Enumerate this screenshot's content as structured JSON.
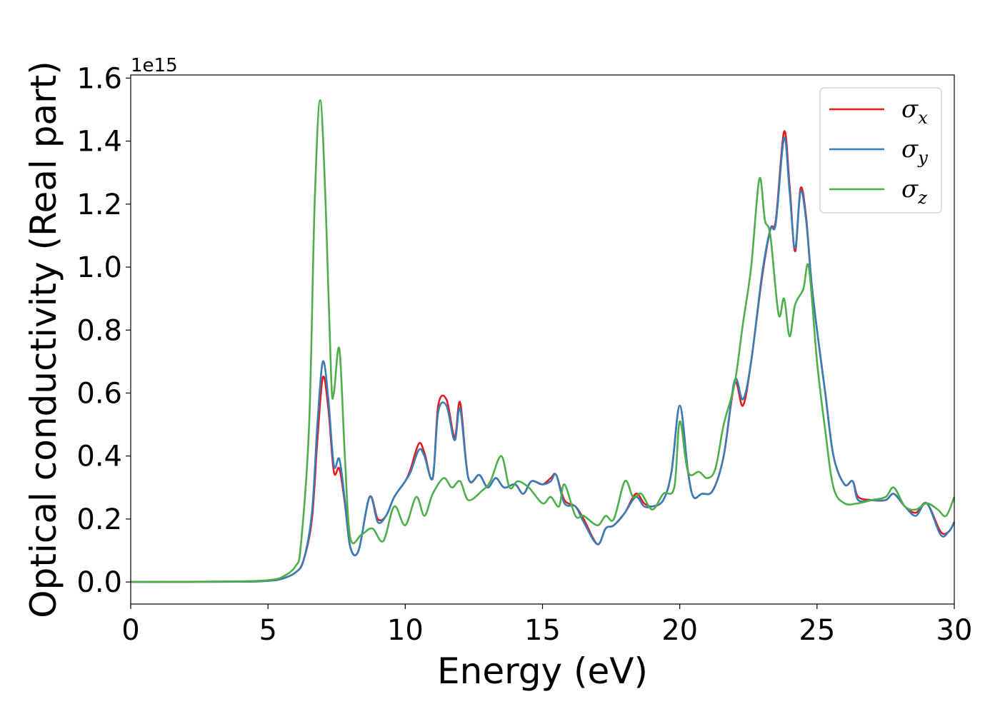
{
  "chart_data": {
    "type": "line",
    "title": "",
    "xlabel": "Energy (eV)",
    "ylabel": "Optical conductivity (Real part)",
    "y_offset_label": "1e15",
    "xlim": [
      0,
      30
    ],
    "ylim": [
      -0.07,
      1.61
    ],
    "xticks": [
      0,
      5,
      10,
      15,
      20,
      25,
      30
    ],
    "yticks": [
      0.0,
      0.2,
      0.4,
      0.6,
      0.8,
      1.0,
      1.2,
      1.4,
      1.6
    ],
    "xtick_labels": [
      "0",
      "5",
      "10",
      "15",
      "20",
      "25",
      "30"
    ],
    "ytick_labels": [
      "0.0",
      "0.2",
      "0.4",
      "0.6",
      "0.8",
      "1.0",
      "1.2",
      "1.4",
      "1.6"
    ],
    "grid": false,
    "legend_position": "top-right",
    "series": [
      {
        "name": "σx",
        "legend_symbol": "σ",
        "legend_sub": "x",
        "color": "#e41a1c",
        "x": [
          0,
          4,
          5,
          5.5,
          6,
          6.3,
          6.6,
          6.8,
          7.0,
          7.2,
          7.4,
          7.6,
          7.8,
          8.0,
          8.3,
          8.7,
          9.0,
          9.3,
          9.6,
          10.0,
          10.2,
          10.5,
          10.7,
          11.0,
          11.2,
          11.5,
          11.8,
          12.0,
          12.3,
          12.7,
          13.0,
          13.3,
          13.6,
          14.0,
          14.3,
          14.6,
          15.0,
          15.3,
          15.5,
          15.8,
          16.2,
          16.5,
          17.0,
          17.3,
          17.6,
          18.0,
          18.4,
          18.7,
          19.0,
          19.4,
          19.7,
          20.0,
          20.3,
          20.5,
          20.8,
          21.2,
          21.6,
          22.0,
          22.3,
          22.6,
          23.0,
          23.3,
          23.5,
          23.8,
          24.0,
          24.2,
          24.4,
          24.6,
          24.8,
          25.0,
          25.3,
          25.6,
          26.0,
          26.3,
          26.5,
          27.0,
          27.5,
          27.8,
          28.2,
          28.6,
          29.0,
          29.5,
          29.8,
          30.0
        ],
        "y": [
          0,
          0.001,
          0.004,
          0.01,
          0.03,
          0.07,
          0.2,
          0.45,
          0.65,
          0.55,
          0.35,
          0.36,
          0.25,
          0.11,
          0.1,
          0.27,
          0.2,
          0.21,
          0.27,
          0.32,
          0.36,
          0.44,
          0.41,
          0.33,
          0.56,
          0.58,
          0.46,
          0.57,
          0.33,
          0.34,
          0.3,
          0.33,
          0.3,
          0.31,
          0.28,
          0.32,
          0.31,
          0.33,
          0.34,
          0.26,
          0.24,
          0.2,
          0.12,
          0.17,
          0.18,
          0.22,
          0.28,
          0.25,
          0.24,
          0.26,
          0.35,
          0.56,
          0.35,
          0.27,
          0.28,
          0.29,
          0.4,
          0.63,
          0.56,
          0.7,
          0.97,
          1.12,
          1.15,
          1.43,
          1.26,
          1.05,
          1.25,
          1.16,
          0.95,
          0.8,
          0.6,
          0.4,
          0.31,
          0.32,
          0.27,
          0.26,
          0.26,
          0.28,
          0.24,
          0.22,
          0.25,
          0.16,
          0.16,
          0.19
        ]
      },
      {
        "name": "σy",
        "legend_symbol": "σ",
        "legend_sub": "y",
        "color": "#377eb8",
        "x": [
          0,
          4,
          5,
          5.5,
          6,
          6.3,
          6.6,
          6.8,
          7.0,
          7.2,
          7.4,
          7.6,
          7.8,
          8.0,
          8.3,
          8.7,
          9.0,
          9.3,
          9.6,
          10.0,
          10.2,
          10.5,
          10.7,
          11.0,
          11.2,
          11.5,
          11.8,
          12.0,
          12.3,
          12.7,
          13.0,
          13.3,
          13.6,
          14.0,
          14.3,
          14.6,
          15.0,
          15.3,
          15.5,
          15.8,
          16.2,
          16.5,
          17.0,
          17.3,
          17.6,
          18.0,
          18.4,
          18.7,
          19.0,
          19.4,
          19.7,
          20.0,
          20.3,
          20.5,
          20.8,
          21.2,
          21.6,
          22.0,
          22.3,
          22.6,
          23.0,
          23.3,
          23.5,
          23.8,
          24.0,
          24.2,
          24.4,
          24.6,
          24.8,
          25.0,
          25.3,
          25.6,
          26.0,
          26.3,
          26.5,
          27.0,
          27.5,
          27.8,
          28.2,
          28.6,
          29.0,
          29.5,
          29.8,
          30.0
        ],
        "y": [
          0,
          0.001,
          0.004,
          0.01,
          0.03,
          0.07,
          0.22,
          0.5,
          0.7,
          0.58,
          0.37,
          0.39,
          0.26,
          0.11,
          0.1,
          0.27,
          0.19,
          0.21,
          0.27,
          0.32,
          0.35,
          0.42,
          0.4,
          0.33,
          0.54,
          0.56,
          0.45,
          0.55,
          0.33,
          0.34,
          0.3,
          0.33,
          0.3,
          0.31,
          0.28,
          0.32,
          0.31,
          0.32,
          0.34,
          0.25,
          0.24,
          0.19,
          0.12,
          0.17,
          0.18,
          0.22,
          0.27,
          0.24,
          0.24,
          0.26,
          0.35,
          0.56,
          0.35,
          0.27,
          0.28,
          0.29,
          0.4,
          0.64,
          0.58,
          0.7,
          0.98,
          1.12,
          1.14,
          1.41,
          1.24,
          1.06,
          1.24,
          1.15,
          0.95,
          0.8,
          0.6,
          0.4,
          0.31,
          0.32,
          0.26,
          0.26,
          0.26,
          0.28,
          0.24,
          0.21,
          0.25,
          0.15,
          0.16,
          0.19
        ]
      },
      {
        "name": "σz",
        "legend_symbol": "σ",
        "legend_sub": "z",
        "color": "#4daf4a",
        "x": [
          0,
          4,
          5,
          5.5,
          6,
          6.2,
          6.5,
          6.7,
          6.9,
          7.1,
          7.3,
          7.4,
          7.6,
          7.8,
          8.0,
          8.4,
          8.8,
          9.2,
          9.6,
          10.0,
          10.4,
          10.7,
          11.0,
          11.4,
          11.7,
          12.0,
          12.3,
          12.8,
          13.1,
          13.5,
          13.8,
          14.1,
          14.5,
          15.0,
          15.3,
          15.6,
          15.8,
          16.2,
          16.5,
          17.0,
          17.3,
          17.6,
          18.0,
          18.3,
          18.6,
          19.0,
          19.4,
          19.8,
          20.0,
          20.3,
          20.7,
          21.0,
          21.3,
          21.6,
          22.0,
          22.3,
          22.6,
          22.9,
          23.1,
          23.3,
          23.6,
          23.8,
          24.0,
          24.2,
          24.5,
          24.7,
          25.0,
          25.3,
          25.6,
          26.0,
          26.5,
          27.0,
          27.5,
          27.8,
          28.2,
          28.6,
          29.0,
          29.4,
          29.7,
          30.0
        ],
        "y": [
          0,
          0.002,
          0.006,
          0.015,
          0.05,
          0.12,
          0.5,
          1.2,
          1.53,
          1.2,
          0.65,
          0.6,
          0.74,
          0.4,
          0.14,
          0.15,
          0.17,
          0.13,
          0.24,
          0.18,
          0.27,
          0.21,
          0.28,
          0.33,
          0.3,
          0.32,
          0.26,
          0.29,
          0.32,
          0.4,
          0.3,
          0.32,
          0.3,
          0.25,
          0.27,
          0.24,
          0.31,
          0.21,
          0.21,
          0.18,
          0.21,
          0.2,
          0.32,
          0.27,
          0.28,
          0.23,
          0.28,
          0.3,
          0.51,
          0.35,
          0.35,
          0.33,
          0.36,
          0.5,
          0.63,
          0.82,
          1.0,
          1.28,
          1.15,
          1.1,
          0.85,
          0.9,
          0.78,
          0.88,
          0.93,
          1.0,
          0.7,
          0.48,
          0.3,
          0.25,
          0.25,
          0.26,
          0.27,
          0.3,
          0.24,
          0.23,
          0.25,
          0.23,
          0.21,
          0.27
        ]
      }
    ]
  }
}
